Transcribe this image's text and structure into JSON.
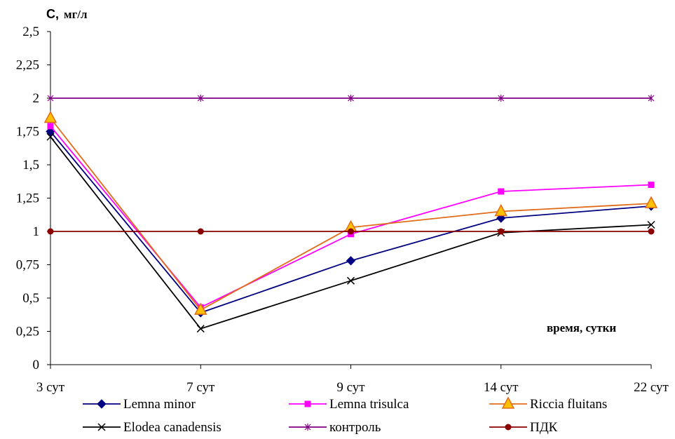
{
  "chart_data": {
    "type": "line",
    "title": "",
    "ylabel_symbol": "С,",
    "ylabel_unit": "мг/л",
    "xlabel": "время, сутки",
    "categories": [
      "3 сут",
      "7 сут",
      "9 сут",
      "14 сут",
      "22 сут"
    ],
    "ylim": [
      0,
      2.5
    ],
    "yticks": [
      "0",
      "0,25",
      "0,5",
      "0,75",
      "1",
      "1,25",
      "1,5",
      "1,75",
      "2",
      "2,25",
      "2,5"
    ],
    "grid": false,
    "legend_position": "bottom",
    "series": [
      {
        "name": "Lemna minor",
        "values": [
          1.75,
          0.39,
          0.78,
          1.1,
          1.19
        ],
        "color": "#000080",
        "marker": "diamond"
      },
      {
        "name": "Lemna trisulca",
        "values": [
          1.79,
          0.43,
          0.98,
          1.3,
          1.35
        ],
        "color": "#ff00ff",
        "marker": "square"
      },
      {
        "name": "Riccia fluitans",
        "values": [
          1.85,
          0.41,
          1.03,
          1.15,
          1.21
        ],
        "color": "#e06c1a",
        "marker": "triangle"
      },
      {
        "name": "Elodea canadensis",
        "values": [
          1.71,
          0.27,
          0.63,
          0.99,
          1.05
        ],
        "color": "#000000",
        "marker": "x"
      },
      {
        "name": "контроль",
        "values": [
          2.0,
          2.0,
          2.0,
          2.0,
          2.0
        ],
        "color": "#7f007f",
        "marker": "star"
      },
      {
        "name": "ПДК",
        "values": [
          1.0,
          1.0,
          1.0,
          1.0,
          1.0
        ],
        "color": "#8b0000",
        "marker": "circle"
      }
    ]
  }
}
